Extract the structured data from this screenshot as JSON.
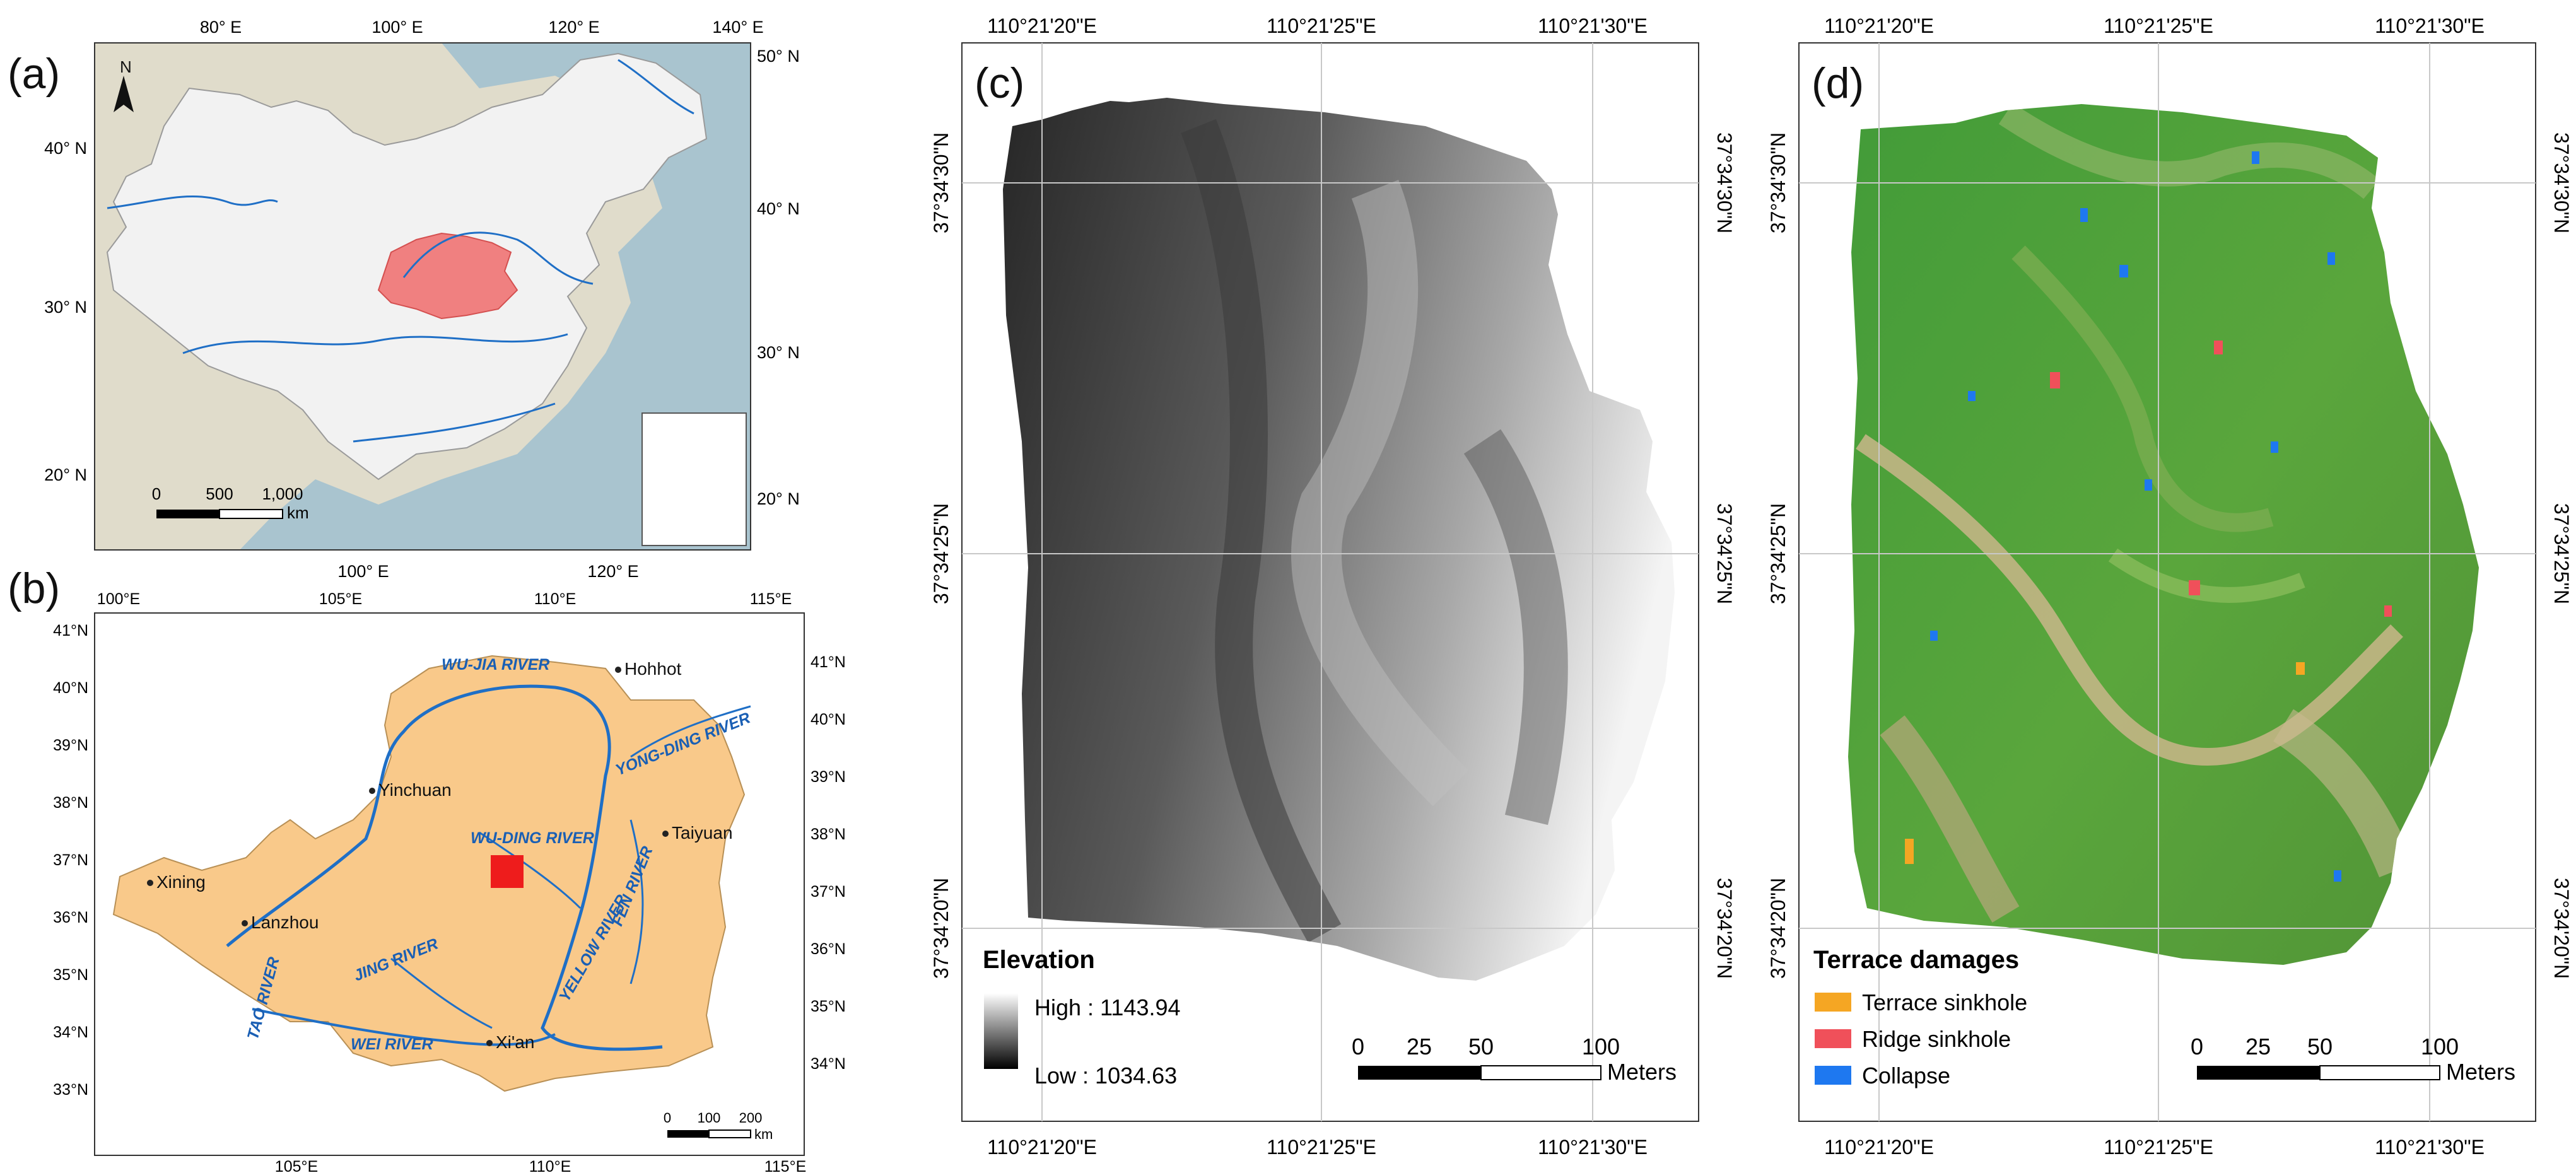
{
  "panel_labels": {
    "a": "(a)",
    "b": "(b)",
    "c": "(c)",
    "d": "(d)"
  },
  "colors": {
    "sea": "#a9c4cf",
    "land_outer": "#e0dccb",
    "china_fill": "#f2f2f2",
    "loess_highlight": "#f08080",
    "river": "#1f6fc6",
    "plateau": "#f9c98a",
    "site": "#ee1c1c",
    "river_label": "#1a5fb4",
    "grid": "#c8c8c8",
    "terrace_sinkhole": "#f5a623",
    "ridge_sinkhole": "#f0505a",
    "collapse": "#1e78f0"
  },
  "panel_a": {
    "north_label": "N",
    "top_ticks": [
      "80° E",
      "100° E",
      "120° E",
      "140° E"
    ],
    "bottom_ticks": [
      "100° E",
      "120° E"
    ],
    "left_ticks": [
      "40° N",
      "30° N",
      "20° N"
    ],
    "right_ticks": [
      "50° N",
      "40° N",
      "30° N",
      "20° N"
    ],
    "scale_numbers": [
      "0",
      "500",
      "1,000"
    ],
    "scale_unit": "km"
  },
  "panel_b": {
    "top_ticks": [
      "100°E",
      "105°E",
      "110°E",
      "115°E"
    ],
    "bottom_ticks": [
      "105°E",
      "110°E",
      "115°E"
    ],
    "left_ticks": [
      "41°N",
      "40°N",
      "39°N",
      "38°N",
      "37°N",
      "36°N",
      "35°N",
      "34°N",
      "33°N"
    ],
    "right_ticks": [
      "41°N",
      "40°N",
      "39°N",
      "38°N",
      "37°N",
      "36°N",
      "35°N",
      "34°N"
    ],
    "cities": [
      "Hohhot",
      "Yinchuan",
      "Taiyuan",
      "Xining",
      "Lanzhou",
      "Xi'an"
    ],
    "rivers": [
      "WU-JIA RIVER",
      "YONG-DING RIVER",
      "WU-DING RIVER",
      "FEN RIVER",
      "YELLOW RIVER",
      "JING RIVER",
      "WEI RIVER",
      "TAO RIVER"
    ],
    "scale_numbers": [
      "0",
      "100",
      "200"
    ],
    "scale_unit": "km"
  },
  "panel_c": {
    "top_ticks": [
      "110°21'20\"E",
      "110°21'25\"E",
      "110°21'30\"E"
    ],
    "bottom_ticks": [
      "110°21'20\"E",
      "110°21'25\"E",
      "110°21'30\"E"
    ],
    "side_ticks": [
      "37°34'30\"N",
      "37°34'25\"N",
      "37°34'20\"N"
    ],
    "legend_title": "Elevation",
    "legend_high": "High : 1143.94",
    "legend_low": "Low : 1034.63",
    "scale_numbers": [
      "0",
      "25",
      "50",
      "100"
    ],
    "scale_unit": "Meters"
  },
  "panel_d": {
    "top_ticks": [
      "110°21'20\"E",
      "110°21'25\"E",
      "110°21'30\"E"
    ],
    "bottom_ticks": [
      "110°21'20\"E",
      "110°21'25\"E",
      "110°21'30\"E"
    ],
    "side_ticks": [
      "37°34'30\"N",
      "37°34'25\"N",
      "37°34'20\"N"
    ],
    "legend_title": "Terrace damages",
    "legend_items": [
      "Terrace sinkhole",
      "Ridge sinkhole",
      "Collapse"
    ],
    "scale_numbers": [
      "0",
      "25",
      "50",
      "100"
    ],
    "scale_unit": "Meters"
  }
}
